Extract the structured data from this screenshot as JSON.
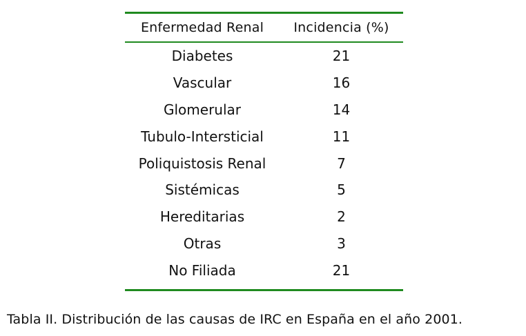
{
  "table": {
    "headers": [
      "Enfermedad Renal",
      "Incidencia (%)"
    ],
    "rows": [
      [
        "Diabetes",
        "21"
      ],
      [
        "Vascular",
        "16"
      ],
      [
        "Glomerular",
        "14"
      ],
      [
        "Tubulo-Intersticial",
        "11"
      ],
      [
        "Poliquistosis Renal",
        "7"
      ],
      [
        "Sistémicas",
        "5"
      ],
      [
        "Hereditarias",
        "2"
      ],
      [
        "Otras",
        "3"
      ],
      [
        "No Filiada",
        "21"
      ]
    ],
    "rule_color": "#1f8a1f"
  },
  "caption": "Tabla II. Distribución de las causas de IRC en España en el año 2001."
}
